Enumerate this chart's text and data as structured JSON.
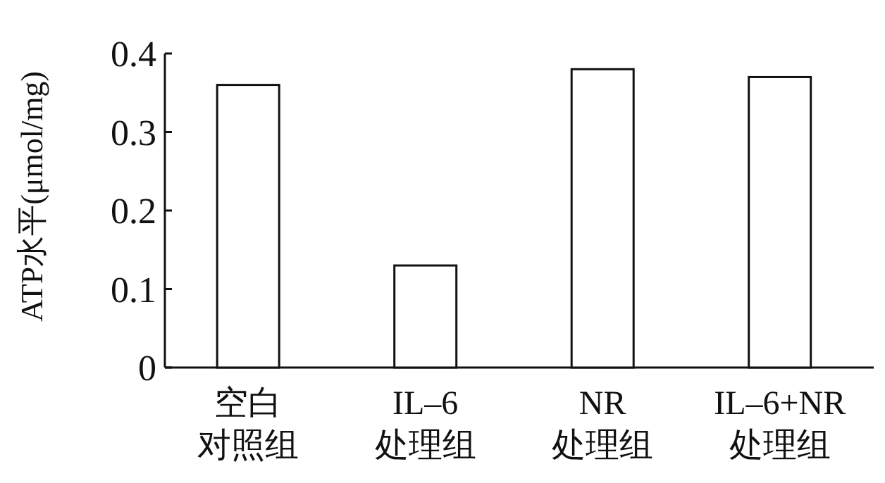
{
  "chart_data": {
    "type": "bar",
    "ylabel": "ATP水平(μmol/mg)",
    "categories": [
      "空白对照组",
      "IL–6处理组",
      "NR处理组",
      "IL–6+NR处理组"
    ],
    "values": [
      0.36,
      0.13,
      0.38,
      0.37
    ],
    "color": "#ffffff",
    "ylim": [
      0,
      0.4
    ],
    "yticks": [
      0,
      0.1,
      0.2,
      0.3,
      0.4
    ],
    "grid": false
  }
}
